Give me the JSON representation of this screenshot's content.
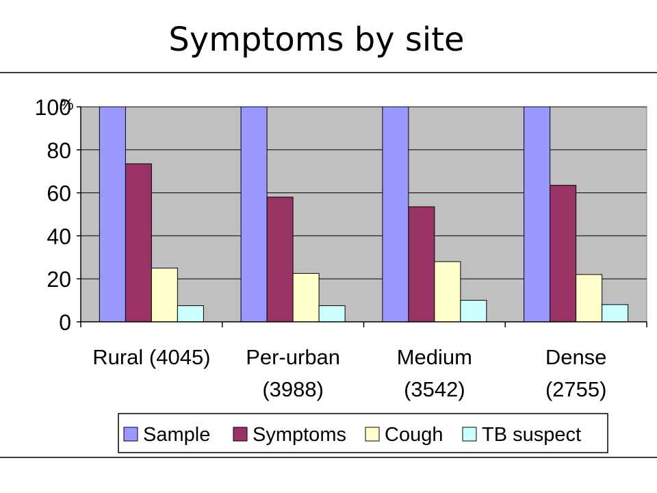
{
  "slide": {
    "title": "Symptoms by site"
  },
  "chart_data": {
    "type": "bar",
    "unit": "%",
    "categories": [
      [
        "Rural (4045)"
      ],
      [
        "Per-urban",
        "(3988)"
      ],
      [
        "Medium",
        "(3542)"
      ],
      [
        "Dense",
        "(2755)"
      ]
    ],
    "series": [
      {
        "name": "Sample",
        "color": "#9999ff",
        "values": [
          100,
          100,
          100,
          100
        ]
      },
      {
        "name": "Symptoms",
        "color": "#993366",
        "values": [
          73.5,
          58,
          53.5,
          63.5
        ]
      },
      {
        "name": "Cough",
        "color": "#ffffcc",
        "values": [
          25,
          22.5,
          28,
          22
        ]
      },
      {
        "name": "TB suspect",
        "color": "#ccffff",
        "values": [
          7.5,
          7.5,
          10,
          8
        ]
      }
    ],
    "yticks": [
      "0",
      "20",
      "40",
      "60",
      "80",
      "100"
    ],
    "ylim": [
      0,
      100
    ],
    "grid": true,
    "legend": "bottom-right",
    "plot_background": "#c0c0c0"
  }
}
